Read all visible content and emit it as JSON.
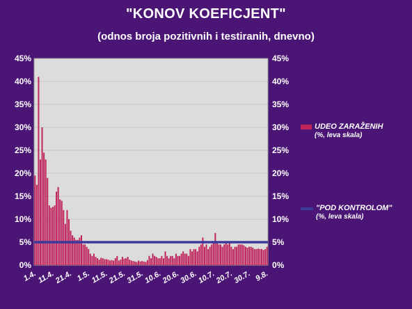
{
  "chart_data": {
    "type": "bar",
    "title": "\"KONOV KOEFICJENT\"",
    "subtitle": "(odnos broja pozitivnih i testiranih, dnevno)",
    "xlabel": "",
    "ylabel": "",
    "ylim": [
      0,
      45
    ],
    "y_ticks": [
      "0%",
      "5%",
      "10%",
      "15%",
      "20%",
      "25%",
      "30%",
      "35%",
      "40%",
      "45%"
    ],
    "y_tick_values": [
      0,
      5,
      10,
      15,
      20,
      25,
      30,
      35,
      40,
      45
    ],
    "x_tick_labels": [
      "1.4.",
      "11.4.",
      "21.4.",
      "1.5.",
      "11.5.",
      "21.5.",
      "31.5.",
      "10.6.",
      "20.6.",
      "30.6.",
      "10.7.",
      "20.7.",
      "30.7.",
      "9.8."
    ],
    "x_tick_index": [
      0,
      10,
      20,
      30,
      40,
      50,
      60,
      70,
      80,
      90,
      100,
      110,
      120,
      130
    ],
    "grid": true,
    "legend_position": "right",
    "series": [
      {
        "name": "UDEO ZARAŽENIH",
        "note": "(%, leva skala)",
        "type": "bar",
        "color": "#c0245c",
        "values": [
          19.5,
          17.5,
          41.0,
          23.0,
          30.0,
          24.5,
          23.0,
          19.0,
          13.0,
          12.5,
          12.7,
          13.0,
          16.0,
          17.0,
          14.3,
          14.0,
          12.0,
          9.0,
          12.0,
          10.0,
          7.5,
          6.5,
          6.0,
          5.5,
          5.5,
          6.0,
          6.5,
          4.5,
          4.5,
          4.0,
          3.5,
          2.5,
          2.0,
          2.5,
          1.8,
          1.5,
          1.2,
          1.6,
          1.5,
          1.3,
          1.3,
          1.2,
          1.0,
          1.1,
          1.0,
          1.5,
          2.0,
          1.0,
          1.2,
          1.8,
          1.4,
          1.5,
          1.8,
          1.2,
          1.0,
          0.9,
          0.8,
          0.7,
          1.0,
          0.8,
          0.9,
          0.8,
          0.7,
          1.1,
          2.0,
          1.5,
          2.5,
          2.0,
          1.8,
          1.5,
          1.5,
          2.0,
          1.5,
          3.0,
          2.0,
          1.5,
          2.0,
          2.0,
          1.5,
          2.5,
          2.0,
          2.0,
          2.5,
          3.0,
          2.5,
          2.5,
          2.0,
          3.5,
          3.0,
          3.5,
          3.5,
          3.0,
          4.0,
          4.5,
          6.0,
          4.0,
          4.5,
          3.5,
          4.0,
          4.5,
          5.0,
          7.0,
          5.0,
          4.5,
          4.5,
          4.0,
          4.5,
          5.0,
          4.5,
          5.0,
          4.0,
          3.5,
          4.0,
          4.0,
          4.5,
          4.5,
          4.5,
          4.3,
          4.0,
          3.8,
          4.0,
          4.0,
          3.8,
          3.5,
          3.5,
          3.6,
          3.5,
          3.5,
          3.3,
          3.5,
          4.0
        ]
      },
      {
        "name": "\"POD KONTROLOM\"",
        "note": "(%, leva skala)",
        "type": "line",
        "color": "#3b3a9a",
        "values": [
          5,
          5
        ]
      }
    ]
  }
}
